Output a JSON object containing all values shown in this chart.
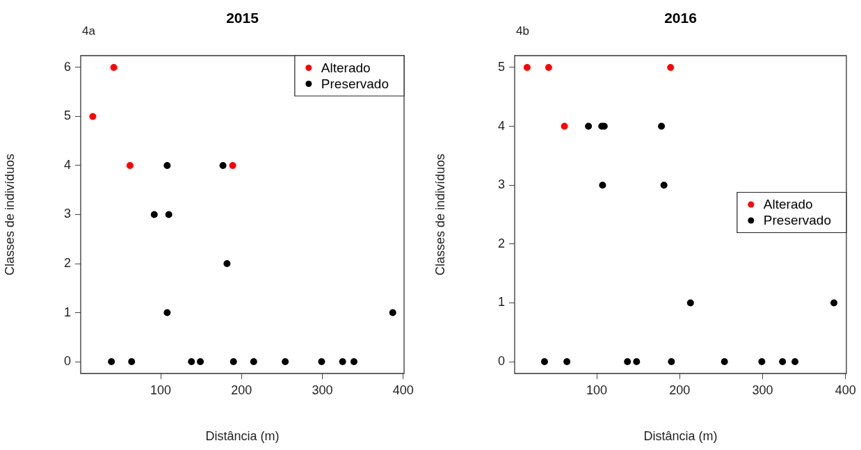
{
  "chart_data": [
    {
      "type": "scatter",
      "title": "2015",
      "annotations": [
        "4a"
      ],
      "xlabel": "Distância (m)",
      "ylabel": "Classes de indivíduos",
      "xlim": [
        1,
        401
      ],
      "ylim": [
        -0.24,
        6.24
      ],
      "xticks": [
        100,
        200,
        300,
        400
      ],
      "yticks": [
        0,
        1,
        2,
        3,
        4,
        5,
        6
      ],
      "legend": "top right",
      "marker": "circle",
      "series": [
        {
          "name": "Alterado",
          "color": "#ff0000",
          "x": [
            16,
            42,
            62,
            189
          ],
          "values": [
            5,
            6,
            4,
            4
          ]
        },
        {
          "name": "Preservado",
          "color": "#000000",
          "x": [
            39,
            64,
            92,
            108,
            110,
            108,
            138,
            149,
            177,
            182,
            190,
            215,
            254,
            299,
            325,
            339,
            387
          ],
          "values": [
            0,
            0,
            3,
            4,
            3,
            1,
            0,
            0,
            4,
            2,
            0,
            0,
            0,
            0,
            0,
            0,
            1
          ]
        }
      ]
    },
    {
      "type": "scatter",
      "title": "2016",
      "annotations": [
        "4b"
      ],
      "xlabel": "Distância (m)",
      "ylabel": "Classes de indivíduos",
      "xlim": [
        1,
        401
      ],
      "ylim": [
        -0.2,
        5.2
      ],
      "xticks": [
        100,
        200,
        300,
        400
      ],
      "yticks": [
        0,
        1,
        2,
        3,
        4,
        5
      ],
      "legend": "right",
      "marker": "circle",
      "series": [
        {
          "name": "Alterado",
          "color": "#ff0000",
          "x": [
            16,
            42,
            61,
            189
          ],
          "values": [
            5,
            5,
            4,
            5
          ]
        },
        {
          "name": "Preservado",
          "color": "#000000",
          "x": [
            37,
            64,
            90,
            106,
            109,
            107,
            137,
            148,
            178,
            181,
            190,
            213,
            254,
            299,
            324,
            339,
            386
          ],
          "values": [
            0,
            0,
            4,
            4,
            4,
            3,
            0,
            0,
            4,
            3,
            0,
            1,
            0,
            0,
            0,
            0,
            1
          ]
        }
      ]
    }
  ]
}
